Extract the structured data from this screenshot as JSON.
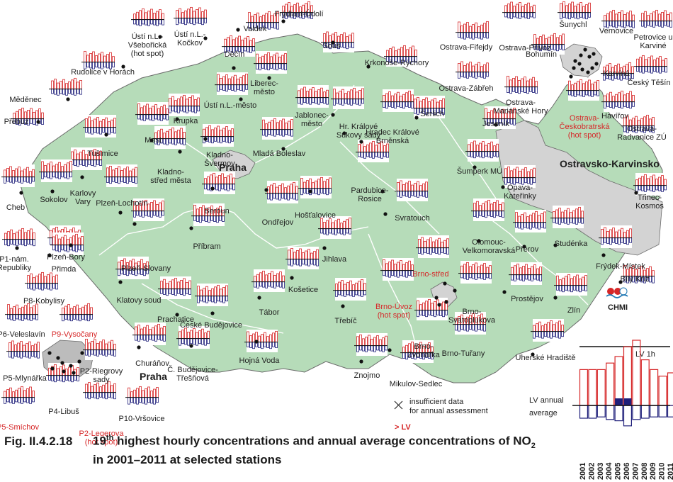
{
  "caption": {
    "figure_number": "Fig. II.4.2.18",
    "rank_prefix": "19",
    "rank_suffix": "th",
    "title_line1": " highest hourly concentrations and annual average concentrations of NO",
    "subscript": "2",
    "title_line2": "in 2001–2011 at selected stations"
  },
  "legend": {
    "lv_1h": "LV 1h",
    "lv_annual_line1": "LV  annual",
    "lv_annual_line2": "average",
    "insufficient_line1": "insufficient data",
    "insufficient_line2": "for annual assessment",
    "exceed": "> LV",
    "years": [
      "2001",
      "2002",
      "2003",
      "2004",
      "2005",
      "2006",
      "2007",
      "2008",
      "2009",
      "2010",
      "2011"
    ],
    "hourly_values": [
      0.55,
      0.55,
      0.55,
      0.65,
      0.75,
      0.9,
      1.0,
      0.7,
      0.55,
      0.45,
      0.5
    ],
    "annual_values": [
      0.5,
      0.5,
      0.45,
      0.55,
      0.6,
      0.8,
      0.55,
      0.5,
      0.45,
      0.45,
      0.45
    ],
    "exceed_annual": [
      false,
      false,
      false,
      false,
      true,
      true,
      false,
      false,
      false,
      false,
      false
    ],
    "exceed_hourly": [
      false,
      false,
      false,
      false,
      false,
      true,
      false,
      false,
      false,
      false,
      false
    ]
  },
  "logo": {
    "text": "CHMI"
  },
  "regions": [
    {
      "name": "Praha",
      "color": "#d3d3d3"
    },
    {
      "name": "Ostravsko-Karvinsko",
      "color": "#d3d3d3"
    },
    {
      "name": "Brno",
      "color": "#d3d3d3"
    }
  ],
  "colors": {
    "country": "#b6dcb9",
    "border": "#ffffff",
    "outline": "#6a6a6a",
    "bar_hourly": "#d62728",
    "bar_annual": "#1f1f7a",
    "exceed": "#d62728",
    "area": "#d3d3d3"
  },
  "stations": [
    {
      "name": "Ústí n.L.-\nVšebořická\n(hot spot)",
      "red": false
    },
    {
      "name": "Ústí n.L.-\nKočkov",
      "red": false
    },
    {
      "name": "Valdek",
      "red": false
    },
    {
      "name": "Frýdlant-Údolí",
      "red": false
    },
    {
      "name": "Souš",
      "red": false
    },
    {
      "name": "Rudolice v Horách",
      "red": false
    },
    {
      "name": "Děčín",
      "red": false
    },
    {
      "name": "Liberec-\nměsto",
      "red": false
    },
    {
      "name": "Krkonoše-Rýchory",
      "red": false
    },
    {
      "name": "Měděnec",
      "red": false
    },
    {
      "name": "Ústí n.L.-město",
      "red": false
    },
    {
      "name": "Jablonec-\nměsto",
      "red": false
    },
    {
      "name": "Šerlich",
      "red": false
    },
    {
      "name": "Přebuz",
      "red": false
    },
    {
      "name": "Krupka",
      "red": false
    },
    {
      "name": "Hr. Králové\nSukovy sady",
      "red": false
    },
    {
      "name": "Hradec Králové\nBrněnská",
      "red": false
    },
    {
      "name": "Tušimice",
      "red": false
    },
    {
      "name": "Most",
      "red": false
    },
    {
      "name": "Kladno-\nŠvermov",
      "red": false
    },
    {
      "name": "Mladá Boleslav",
      "red": false
    },
    {
      "name": "Kladno-\nstřed města",
      "red": false
    },
    {
      "name": "Karlovy\nVary",
      "red": false
    },
    {
      "name": "Sokolov",
      "red": false
    },
    {
      "name": "Cheb",
      "red": false
    },
    {
      "name": "Plzeň-Lochotín",
      "red": false
    },
    {
      "name": "Beroun",
      "red": false
    },
    {
      "name": "Pardubice-\nRosice",
      "red": false
    },
    {
      "name": "Hošťalovice",
      "red": false
    },
    {
      "name": "Ondřejov",
      "red": false
    },
    {
      "name": "Svratouch",
      "red": false
    },
    {
      "name": "Příbram",
      "red": false
    },
    {
      "name": "Plzeň-Bory",
      "red": false
    },
    {
      "name": "Plzeň-Slovany",
      "red": false
    },
    {
      "name": "P1-nám.\nRepubliky",
      "red": false
    },
    {
      "name": "Přimda",
      "red": false
    },
    {
      "name": "Jihlava",
      "red": false
    },
    {
      "name": "Klatovy soud",
      "red": false
    },
    {
      "name": "Košetice",
      "red": false
    },
    {
      "name": "Tábor",
      "red": false
    },
    {
      "name": "Prachatice",
      "red": false
    },
    {
      "name": "České Budějovice",
      "red": false
    },
    {
      "name": "Třebíč",
      "red": false
    },
    {
      "name": "Brno-střed",
      "red": true
    },
    {
      "name": "Brno-Úvoz\n(hot spot)",
      "red": true
    },
    {
      "name": "Brno-\nSvatoplukova",
      "red": false
    },
    {
      "name": "Brno-\nZvonařka",
      "red": false
    },
    {
      "name": "Brno-Tuřany",
      "red": false
    },
    {
      "name": "Churáňov",
      "red": false
    },
    {
      "name": "Hojná Voda",
      "red": false
    },
    {
      "name": "Č. Budějovice-\nTřešňová",
      "red": false
    },
    {
      "name": "Znojmo",
      "red": false
    },
    {
      "name": "Mikulov-Sedlec",
      "red": false
    },
    {
      "name": "P8-Kobylisy",
      "red": false
    },
    {
      "name": "P6-Veleslavín",
      "red": false
    },
    {
      "name": "P9-Vysočany",
      "red": true
    },
    {
      "name": "P5-Mlynářka",
      "red": false
    },
    {
      "name": "P2-Riegrovy\nsady",
      "red": false
    },
    {
      "name": "P4-Libuš",
      "red": false
    },
    {
      "name": "P10-Vršovice",
      "red": false
    },
    {
      "name": "P5-Smíchov",
      "red": true
    },
    {
      "name": "P2-Legerova\n(hot spot)",
      "red": true
    },
    {
      "name": "Ostrava-Fifejdy",
      "red": false
    },
    {
      "name": "Ostrava-Přívoz",
      "red": false
    },
    {
      "name": "Šunychl",
      "red": false
    },
    {
      "name": "Vernovice",
      "red": false
    },
    {
      "name": "Petrovice u\nKarviné",
      "red": false
    },
    {
      "name": "Bohumín",
      "red": false
    },
    {
      "name": "Karviná",
      "red": false
    },
    {
      "name": "Ostrava-Zábřeh",
      "red": false
    },
    {
      "name": "Ostrava-\nMariánské Hory",
      "red": false
    },
    {
      "name": "Český Těšín",
      "red": false
    },
    {
      "name": "Ostrava-\nČeskobratrská\n(hot spot)",
      "red": true
    },
    {
      "name": "Havířov",
      "red": false
    },
    {
      "name": "Ostrava-\nRadvanice ZÚ",
      "red": false
    },
    {
      "name": "Jeseník",
      "red": false
    },
    {
      "name": "Šumperk MÚ",
      "red": false
    },
    {
      "name": "Opava-\nKateřinky",
      "red": false
    },
    {
      "name": "Třinec-\nKosmos",
      "red": false
    },
    {
      "name": "Olomouc-\nVelkomoravská",
      "red": false
    },
    {
      "name": "Přerov",
      "red": false
    },
    {
      "name": "Studénka",
      "red": false
    },
    {
      "name": "Frýdek-Místek",
      "red": false
    },
    {
      "name": "Bílý Kříž",
      "red": false
    },
    {
      "name": "Prostějov",
      "red": false
    },
    {
      "name": "Zlín",
      "red": false
    },
    {
      "name": "Uherské Hradiště",
      "red": false
    }
  ],
  "area_labels": [
    {
      "name": "Praha",
      "big": true
    },
    {
      "name": "Ostravsko-Karvinsko",
      "big": true
    },
    {
      "name": "Praha",
      "big": true
    }
  ]
}
